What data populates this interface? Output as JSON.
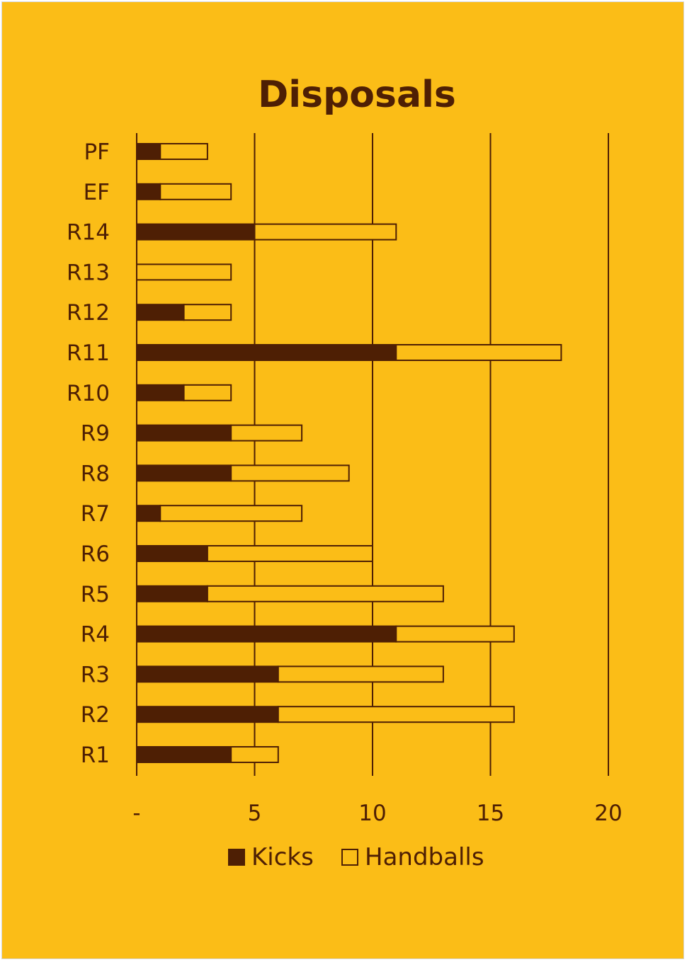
{
  "chart_data": {
    "type": "bar",
    "orientation": "horizontal",
    "stacked": true,
    "title": "Disposals",
    "categories": [
      "R1",
      "R2",
      "R3",
      "R4",
      "R5",
      "R6",
      "R7",
      "R8",
      "R9",
      "R10",
      "R11",
      "R12",
      "R13",
      "R14",
      "EF",
      "PF"
    ],
    "series": [
      {
        "name": "Kicks",
        "values": [
          4,
          6,
          6,
          11,
          3,
          3,
          1,
          4,
          4,
          2,
          11,
          2,
          0,
          5,
          1,
          1
        ]
      },
      {
        "name": "Handballs",
        "values": [
          2,
          10,
          7,
          5,
          10,
          7,
          6,
          5,
          3,
          2,
          7,
          2,
          4,
          6,
          3,
          2
        ]
      }
    ],
    "xlim": [
      0,
      20
    ],
    "xticks": [
      "-",
      "5",
      "10",
      "15",
      "20"
    ],
    "grid": "vertical",
    "legend_position": "bottom"
  },
  "colors": {
    "background": "#FBBD17",
    "kicks_fill": "#4E1F04",
    "handballs_fill": "#FBBD17",
    "outline": "#4E1F04"
  }
}
